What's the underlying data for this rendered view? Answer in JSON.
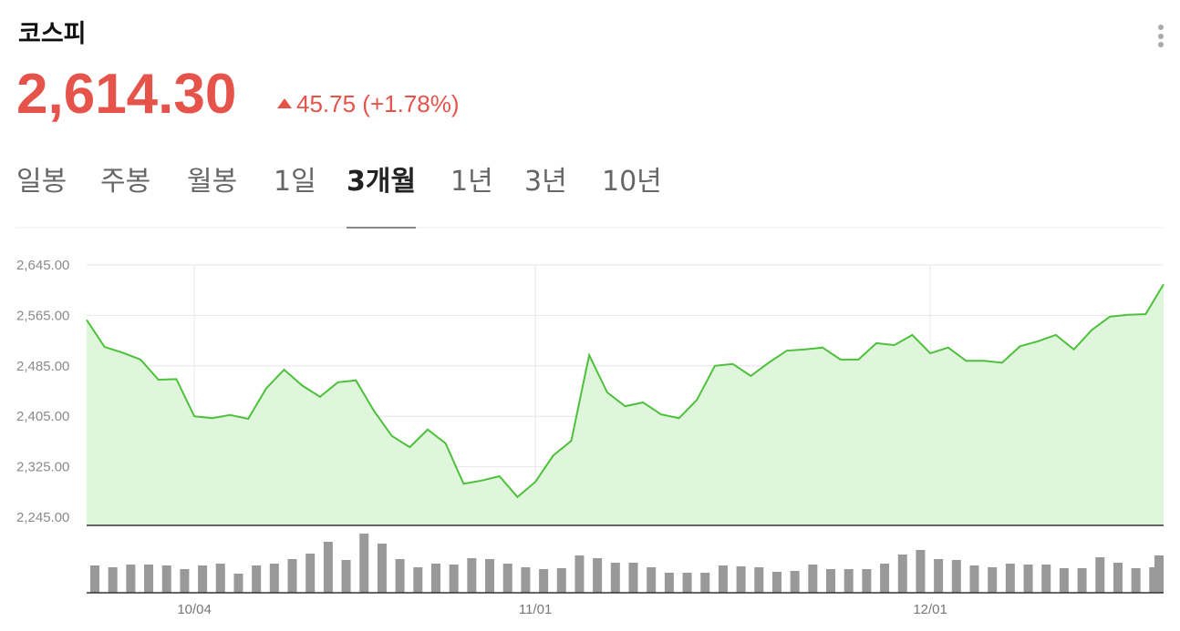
{
  "header": {
    "title": "코스피",
    "price": "2,614.30",
    "change": "45.75 (+1.78%)"
  },
  "tabs": {
    "items": [
      "일봉",
      "주봉",
      "월봉",
      "1일",
      "3개월",
      "1년",
      "3년",
      "10년"
    ],
    "selected": 4
  },
  "chart_data": [
    {
      "type": "area",
      "color": "#4cc13a",
      "fill": "#dff5dc",
      "grid": true,
      "ylim": [
        2232,
        2645
      ],
      "yticks": [
        {
          "value": 2245,
          "label": "2,245.00"
        },
        {
          "value": 2325,
          "label": "2,325.00"
        },
        {
          "value": 2405,
          "label": "2,405.00"
        },
        {
          "value": 2485,
          "label": "2,485.00"
        },
        {
          "value": 2565,
          "label": "2,565.00"
        },
        {
          "value": 2645,
          "label": "2,645.00"
        }
      ],
      "values": [
        2558,
        2515,
        2506,
        2495,
        2463,
        2464,
        2405,
        2402,
        2407,
        2401,
        2449,
        2479,
        2454,
        2436,
        2459,
        2462,
        2414,
        2374,
        2356,
        2384,
        2362,
        2298,
        2303,
        2310,
        2277,
        2301,
        2343,
        2366,
        2502,
        2443,
        2421,
        2427,
        2408,
        2402,
        2431,
        2485,
        2488,
        2469,
        2490,
        2509,
        2511,
        2514,
        2495,
        2495,
        2521,
        2518,
        2534,
        2505,
        2514,
        2493,
        2493,
        2490,
        2516,
        2524,
        2534,
        2511,
        2542,
        2563,
        2566,
        2567,
        2614.3
      ]
    },
    {
      "type": "bar",
      "color": "#999999",
      "ylim": [
        0,
        71
      ],
      "categories": [
        null,
        null,
        null,
        null,
        null,
        null,
        "10/04",
        null,
        null,
        null,
        null,
        null,
        null,
        null,
        null,
        null,
        null,
        null,
        null,
        null,
        null,
        null,
        null,
        null,
        null,
        "11/01",
        null,
        null,
        null,
        null,
        null,
        null,
        null,
        null,
        null,
        null,
        null,
        null,
        null,
        null,
        null,
        null,
        null,
        null,
        null,
        null,
        null,
        "12/01",
        null,
        null,
        null,
        null,
        null,
        null,
        null,
        null,
        null,
        null,
        null,
        null,
        null
      ],
      "values": [
        30,
        28,
        31,
        31,
        30,
        26,
        30,
        32,
        21,
        30,
        32,
        37,
        43,
        56,
        36,
        65,
        54,
        37,
        28,
        32,
        31,
        38,
        37,
        32,
        28,
        26,
        27,
        41,
        38,
        33,
        33,
        28,
        22,
        22,
        22,
        30,
        29,
        28,
        23,
        24,
        31,
        26,
        26,
        26,
        32,
        42,
        47,
        37,
        36,
        30,
        28,
        32,
        31,
        31,
        27,
        27,
        39,
        33,
        27,
        28,
        41
      ]
    }
  ]
}
